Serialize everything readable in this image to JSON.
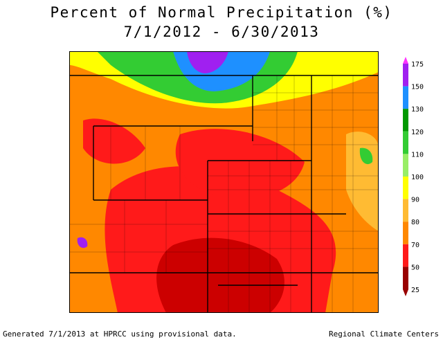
{
  "title": {
    "line1": "Percent of Normal Precipitation (%)",
    "line2": "7/1/2012 - 6/30/2013"
  },
  "legend": {
    "labels": [
      "175",
      "150",
      "130",
      "120",
      "110",
      "100",
      "90",
      "80",
      "70",
      "50",
      "25"
    ],
    "colors": [
      "#ff33ff",
      "#a020f0",
      "#1e90ff",
      "#009900",
      "#33cc33",
      "#99ee66",
      "#ffff00",
      "#ffbb33",
      "#ff8800",
      "#ff1a1a",
      "#990000"
    ]
  },
  "footer": {
    "left": "Generated 7/1/2013 at HPRCC using provisional data.",
    "right": "Regional Climate Centers"
  }
}
